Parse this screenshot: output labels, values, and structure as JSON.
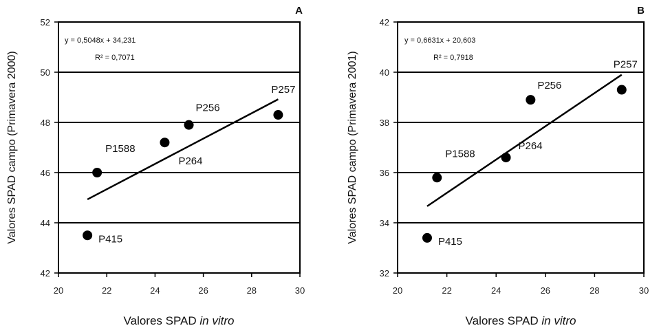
{
  "chart_data": [
    {
      "type": "scatter",
      "panel_label": "A",
      "xlabel": "Valores SPAD",
      "xlabel_italic": "in vitro",
      "ylabel": "Valores SPAD campo (Primavera 2000)",
      "xlim": [
        20,
        30
      ],
      "ylim": [
        42,
        52
      ],
      "xticks": [
        "20",
        "22",
        "24",
        "26",
        "28",
        "30"
      ],
      "yticks": [
        "42",
        "44",
        "46",
        "48",
        "50",
        "52"
      ],
      "grid": "horizontal",
      "equation": "y = 0,5048x + 34,231",
      "r2": "R² = 0,7071",
      "points": [
        {
          "label": "P415",
          "x": 21.2,
          "y": 43.5
        },
        {
          "label": "P1588",
          "x": 21.6,
          "y": 46.0
        },
        {
          "label": "P264",
          "x": 24.4,
          "y": 47.2
        },
        {
          "label": "P256",
          "x": 25.4,
          "y": 47.9
        },
        {
          "label": "P257",
          "x": 29.1,
          "y": 48.3
        }
      ],
      "trendline": {
        "slope": 0.5048,
        "intercept": 34.231,
        "x_range": [
          21.2,
          29.1
        ]
      }
    },
    {
      "type": "scatter",
      "panel_label": "B",
      "xlabel": "Valores SPAD",
      "xlabel_italic": "in vitro",
      "ylabel": "Valores SPAD campo (Primavera 2001)",
      "xlim": [
        20,
        30
      ],
      "ylim": [
        32,
        42
      ],
      "xticks": [
        "20",
        "22",
        "24",
        "26",
        "28",
        "30"
      ],
      "yticks": [
        "32",
        "34",
        "36",
        "38",
        "40",
        "42"
      ],
      "grid": "horizontal",
      "equation": "y = 0,6631x + 20,603",
      "r2": "R² = 0,7918",
      "points": [
        {
          "label": "P415",
          "x": 21.2,
          "y": 33.4
        },
        {
          "label": "P1588",
          "x": 21.6,
          "y": 35.8
        },
        {
          "label": "P264",
          "x": 24.4,
          "y": 36.6
        },
        {
          "label": "P256",
          "x": 25.4,
          "y": 38.9
        },
        {
          "label": "P257",
          "x": 29.1,
          "y": 39.3
        }
      ],
      "trendline": {
        "slope": 0.6631,
        "intercept": 20.603,
        "x_range": [
          21.2,
          29.1
        ]
      }
    }
  ]
}
